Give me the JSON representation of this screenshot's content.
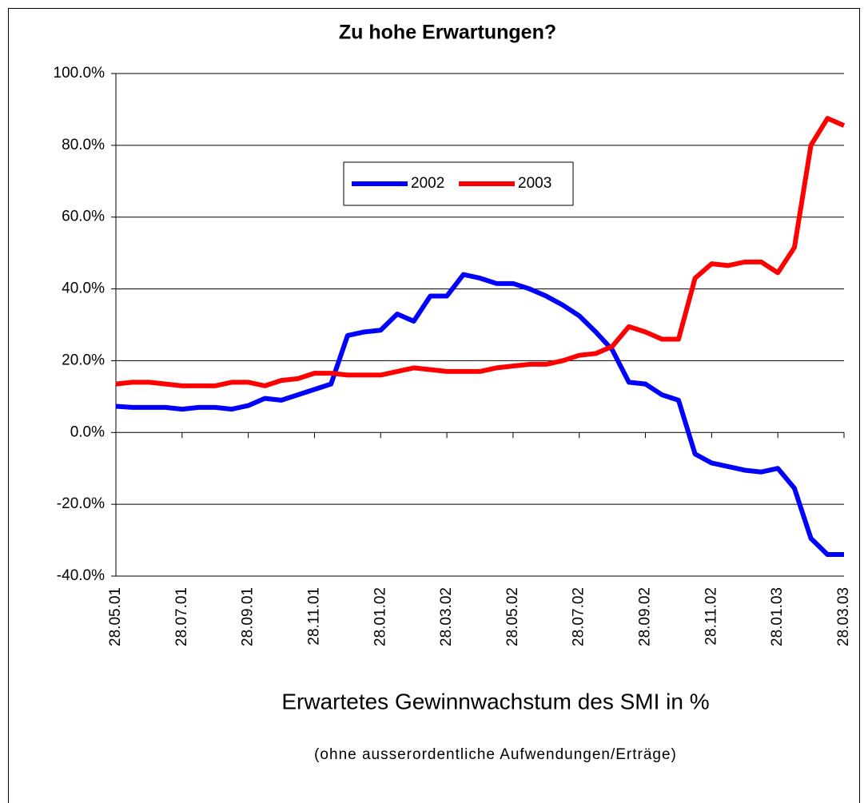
{
  "chart_data": {
    "type": "line",
    "title": "Zu hohe Erwartungen?",
    "x_label": "Erwartetes Gewinnwachstum des SMI in %",
    "subtitle": "(ohne ausserordentliche Aufwendungen/Erträge)",
    "categories": [
      "28.05.01",
      null,
      null,
      null,
      "28.07.01",
      null,
      null,
      null,
      "28.09.01",
      null,
      null,
      null,
      "28.11.01",
      null,
      null,
      null,
      "28.01.02",
      null,
      null,
      null,
      "28.03.02",
      null,
      null,
      null,
      "28.05.02",
      null,
      null,
      null,
      "28.07.02",
      null,
      null,
      null,
      "28.09.02",
      null,
      null,
      null,
      "28.11.02",
      null,
      null,
      null,
      "28.01.03",
      null,
      null,
      null,
      "28.03.03"
    ],
    "series": [
      {
        "name": "2002",
        "color": "#0000ff",
        "values": [
          7.3,
          7,
          7,
          7,
          6.5,
          7,
          7,
          6.5,
          7.5,
          9.5,
          9,
          10.5,
          12,
          13.5,
          27,
          28,
          28.5,
          33,
          31,
          38,
          38,
          44,
          43,
          41.5,
          41.5,
          40,
          38,
          35.5,
          32.5,
          28,
          23,
          14,
          13.5,
          10.5,
          9,
          -6,
          -8.5,
          -9.5,
          -10.5,
          -11,
          -10,
          -15.5,
          -29.5,
          -34,
          -34
        ]
      },
      {
        "name": "2003",
        "color": "#ff0000",
        "values": [
          13.5,
          14,
          14,
          13.5,
          13,
          13,
          13,
          14,
          14,
          13,
          14.5,
          15,
          16.5,
          16.5,
          16,
          16,
          16,
          17,
          18,
          17.5,
          17,
          17,
          17,
          18,
          18.5,
          19,
          19,
          20,
          21.5,
          22,
          24,
          29.5,
          28,
          26,
          26,
          43,
          47,
          46.5,
          47.5,
          47.5,
          44.5,
          51.5,
          80,
          87.5,
          85.5
        ]
      }
    ],
    "ylim": [
      -40,
      100
    ],
    "yticks": [
      {
        "value": -40,
        "label": "-40.0%"
      },
      {
        "value": -20,
        "label": "-20.0%"
      },
      {
        "value": 0,
        "label": "0.0%"
      },
      {
        "value": 20,
        "label": "20.0%"
      },
      {
        "value": 40,
        "label": "40.0%"
      },
      {
        "value": 60,
        "label": "60.0%"
      },
      {
        "value": 80,
        "label": "80.0%"
      },
      {
        "value": 100,
        "label": "100.0%"
      }
    ],
    "grid": true,
    "legend": "top"
  }
}
